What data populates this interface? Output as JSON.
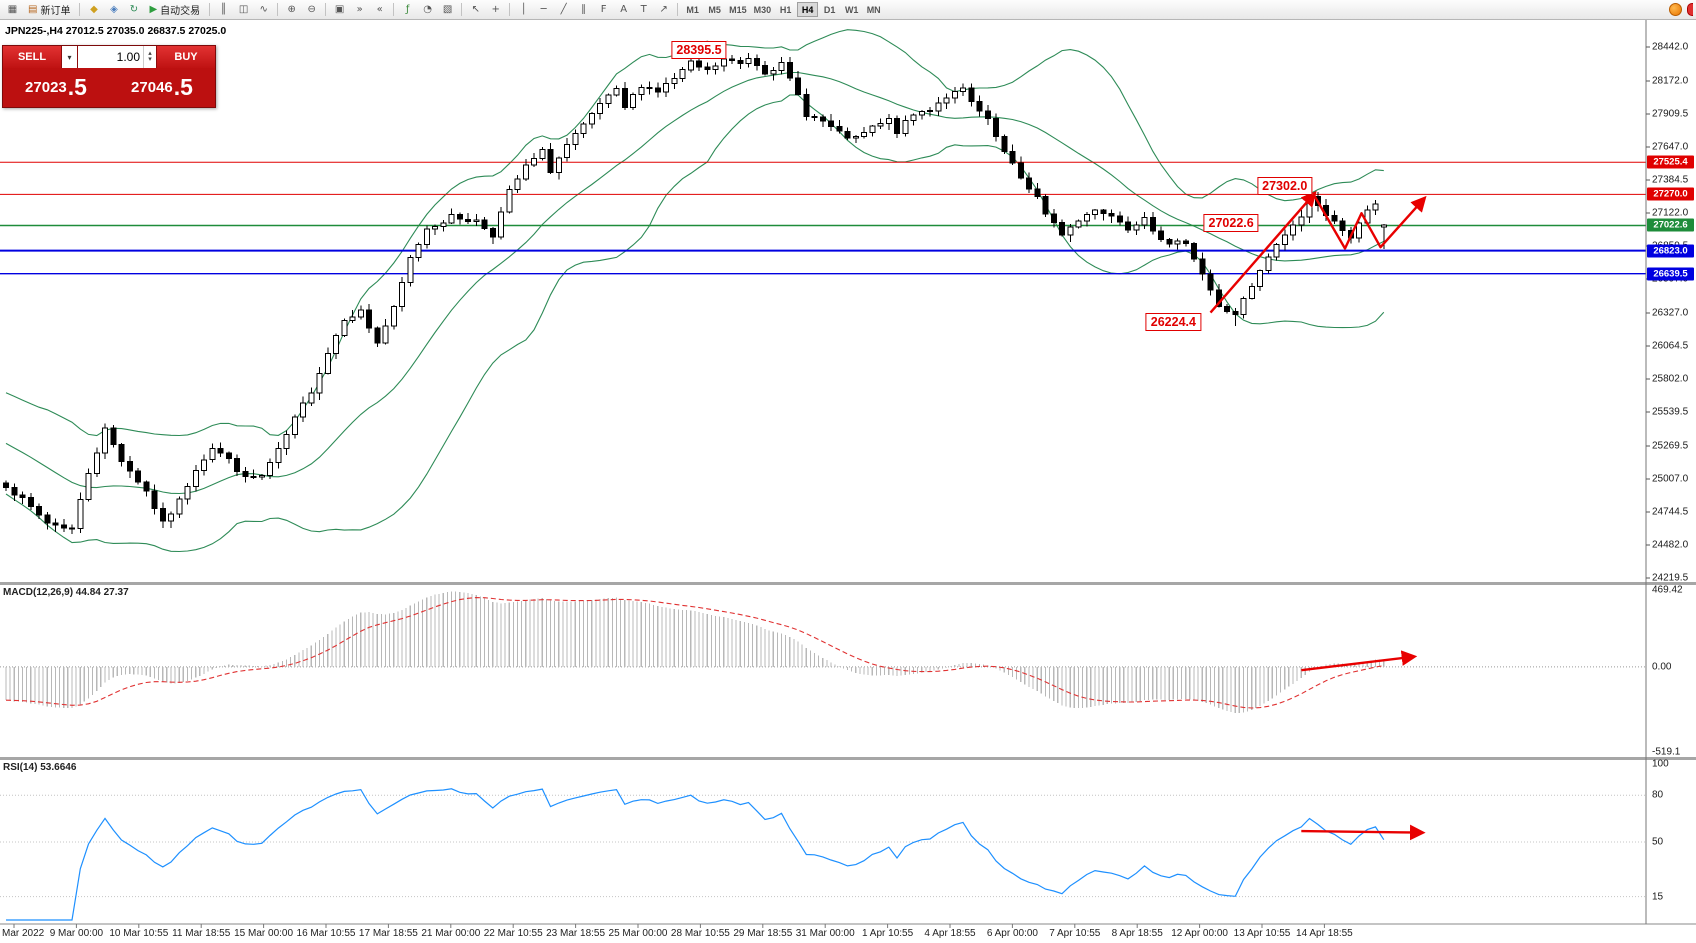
{
  "toolbar": {
    "items": [
      {
        "name": "new-chart-button",
        "glyph": "▦"
      },
      {
        "name": "new-order-button",
        "glyph": "▤",
        "color": "#b5651d",
        "label": "新订单"
      },
      {
        "sep": true
      },
      {
        "name": "market-watch-button",
        "glyph": "◆",
        "color": "#cfa020"
      },
      {
        "name": "navigator-button",
        "glyph": "◈",
        "color": "#4a7dbd"
      },
      {
        "name": "refresh-button",
        "glyph": "↻",
        "color": "#2e8b57"
      },
      {
        "name": "autotrade-button",
        "glyph": "▶",
        "color": "#2e9e3f",
        "label": "自动交易"
      },
      {
        "sep": true
      },
      {
        "name": "bar-chart-button",
        "glyph": "║"
      },
      {
        "name": "candlestick-chart-button",
        "glyph": "◫"
      },
      {
        "name": "line-chart-button",
        "glyph": "∿"
      },
      {
        "sep": true
      },
      {
        "name": "zoom-in-button",
        "glyph": "⊕"
      },
      {
        "name": "zoom-out-button",
        "glyph": "⊖"
      },
      {
        "sep": true
      },
      {
        "name": "tile-windows-button",
        "glyph": "▣"
      },
      {
        "name": "auto-scroll-button",
        "glyph": "»"
      },
      {
        "name": "chart-shift-button",
        "glyph": "«"
      },
      {
        "sep": true
      },
      {
        "name": "indicators-button",
        "glyph": "ƒ",
        "color": "#3c8a3c"
      },
      {
        "name": "periods-button",
        "glyph": "◔"
      },
      {
        "name": "templates-button",
        "glyph": "▧"
      },
      {
        "sep": true
      },
      {
        "name": "cursor-button",
        "glyph": "↖"
      },
      {
        "name": "crosshair-button",
        "glyph": "+"
      },
      {
        "sep": true
      },
      {
        "name": "vertical-line-button",
        "glyph": "│"
      },
      {
        "name": "horizontal-line-button",
        "glyph": "─"
      },
      {
        "name": "trendline-button",
        "glyph": "╱"
      },
      {
        "name": "channel-button",
        "glyph": "∥"
      },
      {
        "name": "fibonacci-button",
        "glyph": "F"
      },
      {
        "name": "text-button",
        "glyph": "A"
      },
      {
        "name": "label-button",
        "glyph": "T"
      },
      {
        "name": "arrows-button",
        "glyph": "↗"
      },
      {
        "sep": true
      }
    ],
    "timeframes": [
      "M1",
      "M5",
      "M15",
      "M30",
      "H1",
      "H4",
      "D1",
      "W1",
      "MN"
    ],
    "active_timeframe": "H4"
  },
  "trade_panel": {
    "sell_label": "SELL",
    "buy_label": "BUY",
    "volume": "1.00",
    "dropdown_icon": "▾",
    "spin_up_icon": "▴",
    "spin_down_icon": "▾",
    "sell_price": "27023",
    "sell_frac": ".5",
    "buy_price": "27046",
    "buy_frac": ".5"
  },
  "chart": {
    "symbol_line": "JPN225-,H4  27012.5 27035.0 26837.5 27025.0",
    "axis_labels": [
      "28442.0",
      "28172.0",
      "27909.5",
      "27647.0",
      "27384.5",
      "27122.0",
      "26859.5",
      "26597.0",
      "26327.0",
      "26064.5",
      "25802.0",
      "25539.5",
      "25269.5",
      "25007.0",
      "24744.5",
      "24482.0",
      "24219.5"
    ],
    "price_tags": [
      {
        "text": "27525.4",
        "price": 27525.4,
        "color": "#e00000"
      },
      {
        "text": "27270.0",
        "price": 27270.0,
        "color": "#e00000"
      },
      {
        "text": "27022.6",
        "price": 27022.6,
        "color": "#1e8c3a"
      },
      {
        "text": "26823.0",
        "price": 26823.0,
        "color": "#0000e0"
      },
      {
        "text": "26639.5",
        "price": 26639.5,
        "color": "#0000e0"
      }
    ],
    "hlines": [
      {
        "price": 27525.4,
        "color": "#e00000",
        "width": 1
      },
      {
        "price": 27270.0,
        "color": "#e00000",
        "width": 1
      },
      {
        "price": 27022.6,
        "color": "#1e8c3a",
        "width": 1.4
      },
      {
        "price": 26823.0,
        "color": "#0000e0",
        "width": 2
      },
      {
        "price": 26639.5,
        "color": "#0000e0",
        "width": 1.4
      }
    ],
    "annotations": [
      {
        "text": "28395.5",
        "i": 84,
        "p": 28420
      },
      {
        "text": "27302.0",
        "i": 155,
        "p": 27335
      },
      {
        "text": "27022.6",
        "i": 148.5,
        "p": 27040
      },
      {
        "text": "26224.4",
        "i": 141.5,
        "p": 26252
      }
    ],
    "arrows": [
      {
        "space": "main",
        "points": [
          [
            146,
            26330
          ],
          [
            158.5,
            27270
          ]
        ]
      },
      {
        "space": "main",
        "points": [
          [
            158.5,
            27270
          ],
          [
            162.3,
            26840
          ],
          [
            164.3,
            27120
          ],
          [
            166.6,
            26850
          ],
          [
            171.8,
            27230
          ]
        ]
      },
      {
        "space": "macd",
        "points": [
          [
            157,
            -20
          ],
          [
            170.5,
            62
          ]
        ]
      },
      {
        "space": "rsi",
        "points": [
          [
            157,
            57
          ],
          [
            171.5,
            56
          ]
        ]
      }
    ],
    "candles": {
      "count": 168,
      "anchors": [
        [
          0,
          24960
        ],
        [
          3,
          24780
        ],
        [
          5,
          24660
        ],
        [
          8,
          24610
        ],
        [
          10,
          25060
        ],
        [
          12,
          25400
        ],
        [
          14,
          25160
        ],
        [
          17,
          24910
        ],
        [
          19,
          24650
        ],
        [
          21,
          24830
        ],
        [
          23,
          25090
        ],
        [
          25,
          25260
        ],
        [
          27,
          25160
        ],
        [
          29,
          25010
        ],
        [
          31,
          25030
        ],
        [
          33,
          25230
        ],
        [
          35,
          25480
        ],
        [
          37,
          25710
        ],
        [
          39,
          26010
        ],
        [
          41,
          26290
        ],
        [
          43,
          26340
        ],
        [
          45,
          26090
        ],
        [
          47,
          26360
        ],
        [
          49,
          26760
        ],
        [
          51,
          27000
        ],
        [
          54,
          27090
        ],
        [
          57,
          27060
        ],
        [
          59,
          26950
        ],
        [
          61,
          27290
        ],
        [
          63,
          27490
        ],
        [
          65,
          27610
        ],
        [
          66,
          27460
        ],
        [
          68,
          27660
        ],
        [
          70,
          27810
        ],
        [
          72,
          27990
        ],
        [
          74,
          28090
        ],
        [
          75,
          27960
        ],
        [
          77,
          28140
        ],
        [
          79,
          28090
        ],
        [
          81,
          28190
        ],
        [
          83,
          28310
        ],
        [
          85,
          28250
        ],
        [
          87,
          28340
        ],
        [
          89,
          28310
        ],
        [
          90,
          28360
        ],
        [
          92,
          28250
        ],
        [
          94,
          28300
        ],
        [
          96,
          28060
        ],
        [
          97,
          27910
        ],
        [
          99,
          27850
        ],
        [
          101,
          27750
        ],
        [
          103,
          27710
        ],
        [
          105,
          27800
        ],
        [
          107,
          27860
        ],
        [
          108,
          27770
        ],
        [
          110,
          27900
        ],
        [
          112,
          27950
        ],
        [
          114,
          28050
        ],
        [
          116,
          28100
        ],
        [
          117,
          28000
        ],
        [
          119,
          27850
        ],
        [
          121,
          27600
        ],
        [
          123,
          27400
        ],
        [
          125,
          27250
        ],
        [
          126,
          27100
        ],
        [
          128,
          26960
        ],
        [
          130,
          27060
        ],
        [
          132,
          27160
        ],
        [
          134,
          27100
        ],
        [
          136,
          27000
        ],
        [
          138,
          27100
        ],
        [
          139,
          27000
        ],
        [
          141,
          26860
        ],
        [
          143,
          26900
        ],
        [
          144,
          26770
        ],
        [
          146,
          26510
        ],
        [
          147,
          26370
        ],
        [
          149,
          26320
        ],
        [
          150,
          26430
        ],
        [
          151,
          26530
        ],
        [
          153,
          26770
        ],
        [
          154,
          26860
        ],
        [
          155,
          26950
        ],
        [
          157,
          27100
        ],
        [
          158,
          27250
        ],
        [
          159,
          27170
        ],
        [
          161,
          27070
        ],
        [
          162,
          26970
        ],
        [
          163,
          26910
        ],
        [
          165,
          27150
        ],
        [
          166,
          27200
        ],
        [
          167,
          27020
        ]
      ],
      "specials": {
        "peak": {
          "i": 90,
          "h": 28395.5
        },
        "swing_high": {
          "i": 158,
          "h": 27302.0
        },
        "swing_low": {
          "i": 149,
          "l": 26224.4
        },
        "last": {
          "i": 167,
          "o": 27012.5,
          "h": 27035.0,
          "l": 26837.5,
          "c": 27025.0
        }
      }
    }
  },
  "macd": {
    "label": "MACD(12,26,9) 44.84 27.37",
    "axis": [
      {
        "text": "469.42",
        "v": 469.42
      },
      {
        "text": "0.00",
        "v": 0
      },
      {
        "text": "-519.1",
        "v": -519.1
      }
    ]
  },
  "rsi": {
    "label": "RSI(14) 53.6646",
    "axis": [
      {
        "text": "100",
        "v": 100
      },
      {
        "text": "80",
        "v": 80
      },
      {
        "text": "50",
        "v": 50
      },
      {
        "text": "15",
        "v": 15
      }
    ],
    "levels_lines": [
      80,
      50,
      15
    ]
  },
  "time_axis": {
    "labels": [
      "Mar 2022",
      "9 Mar 00:00",
      "10 Mar 10:55",
      "11 Mar 18:55",
      "15 Mar 00:00",
      "16 Mar 10:55",
      "17 Mar 18:55",
      "21 Mar 00:00",
      "22 Mar 10:55",
      "23 Mar 18:55",
      "25 Mar 00:00",
      "28 Mar 10:55",
      "29 Mar 18:55",
      "31 Mar 00:00",
      "1 Apr 10:55",
      "4 Apr 18:55",
      "6 Apr 00:00",
      "7 Apr 10:55",
      "8 Apr 18:55",
      "12 Apr 00:00",
      "13 Apr 10:55",
      "14 Apr 18:55"
    ]
  },
  "colors": {
    "bollinger": "#2e8b57",
    "annotation_red": "#e00000",
    "macd_signal": "#e03232",
    "macd_hist": "#b8b8b8",
    "rsi_line": "#1e90ff",
    "panel_red": "#bc1010"
  }
}
